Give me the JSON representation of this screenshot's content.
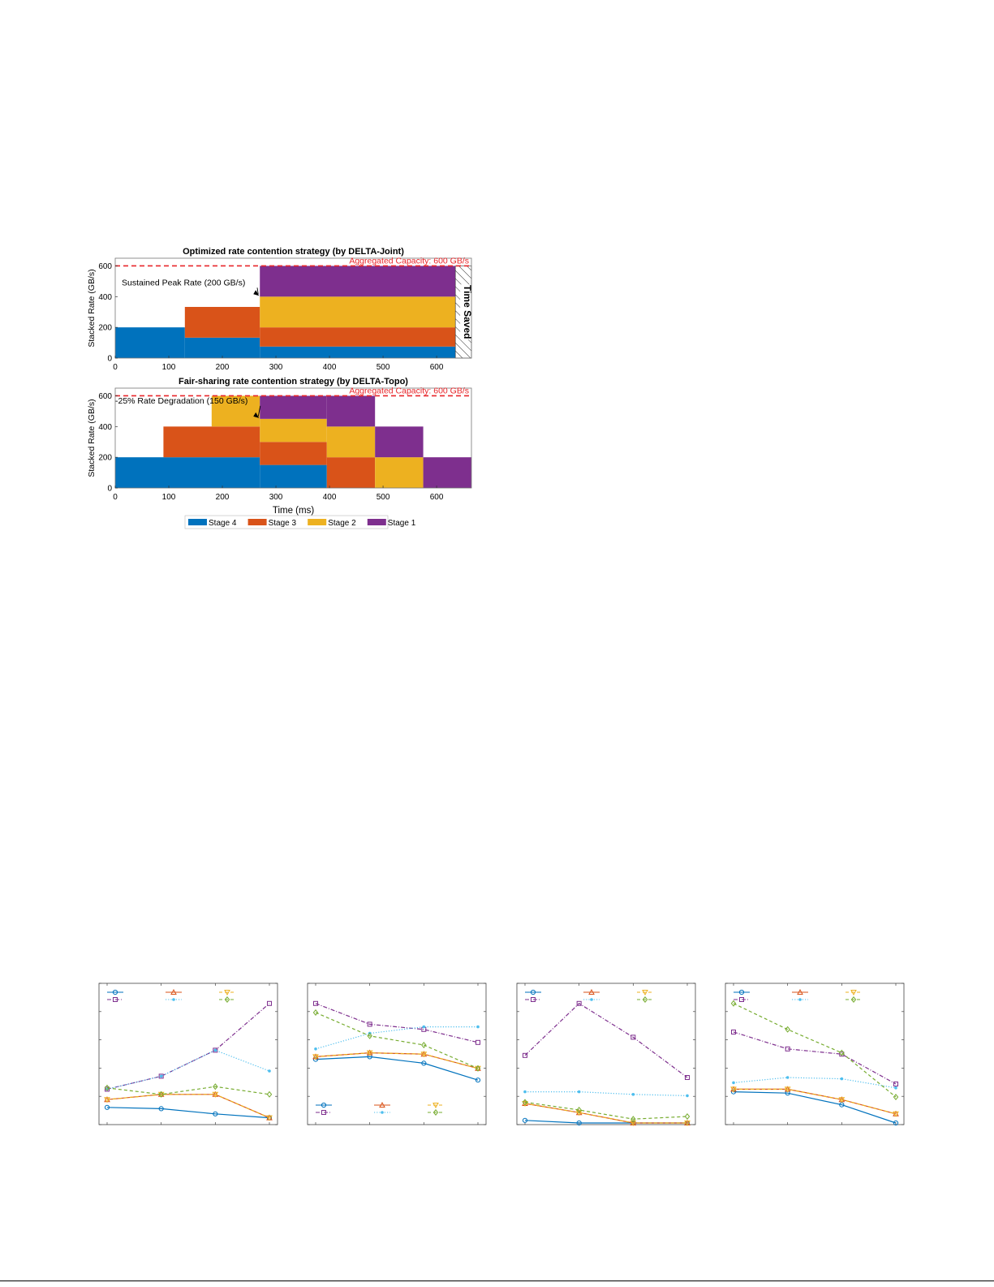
{
  "colors": {
    "stage4": "#0072BD",
    "stage3": "#D95319",
    "stage2": "#EDB120",
    "stage1": "#7E2F8E",
    "capacity": "#E8262A",
    "lc_blue": "#0072BD",
    "lc_orange": "#D95319",
    "lc_yellow": "#EDB120",
    "lc_purple": "#7E2F8E",
    "lc_cyan": "#4DBEEE",
    "lc_green": "#77AC30"
  },
  "chart_data": [
    {
      "type": "area",
      "subtype": "stacked-step",
      "title": "Optimized rate contention strategy (by DELTA-Joint)",
      "xlabel": "",
      "ylabel": "Stacked Rate (GB/s)",
      "xlim": [
        0,
        665
      ],
      "ylim": [
        0,
        650
      ],
      "xticks": [
        "0",
        "100",
        "200",
        "300",
        "400",
        "500",
        "600"
      ],
      "yticks": [
        "0",
        "200",
        "400",
        "600"
      ],
      "capacity_line": {
        "value": 600,
        "label": "Aggregated Capacity: 600 GB/s"
      },
      "annotations": [
        {
          "text": "Sustained Peak Rate (200 GB/s)",
          "arrow_to": [
            270,
            400
          ]
        },
        {
          "text": "Time Saved",
          "x_range": [
            635,
            665
          ]
        }
      ],
      "segments": [
        {
          "stage": "Stage 4",
          "x0": 0,
          "x1": 130,
          "y0": 0,
          "y1": 200
        },
        {
          "stage": "Stage 4",
          "x0": 130,
          "x1": 270,
          "y0": 0,
          "y1": 133
        },
        {
          "stage": "Stage 4",
          "x0": 270,
          "x1": 635,
          "y0": 0,
          "y1": 75
        },
        {
          "stage": "Stage 3",
          "x0": 130,
          "x1": 270,
          "y0": 133,
          "y1": 333
        },
        {
          "stage": "Stage 3",
          "x0": 270,
          "x1": 635,
          "y0": 75,
          "y1": 200
        },
        {
          "stage": "Stage 2",
          "x0": 270,
          "x1": 635,
          "y0": 200,
          "y1": 400
        },
        {
          "stage": "Stage 1",
          "x0": 270,
          "x1": 635,
          "y0": 400,
          "y1": 600
        }
      ]
    },
    {
      "type": "area",
      "subtype": "stacked-step",
      "title": "Fair-sharing rate contention strategy (by DELTA-Topo)",
      "xlabel": "Time (ms)",
      "ylabel": "Stacked Rate (GB/s)",
      "xlim": [
        0,
        665
      ],
      "ylim": [
        0,
        650
      ],
      "xticks": [
        "0",
        "100",
        "200",
        "300",
        "400",
        "500",
        "600"
      ],
      "yticks": [
        "0",
        "200",
        "400",
        "600"
      ],
      "capacity_line": {
        "value": 600,
        "label": "Aggregated Capacity: 600 GB/s"
      },
      "annotations": [
        {
          "text": "-25% Rate Degradation (150 GB/s)",
          "arrow_to": [
            270,
            450
          ]
        }
      ],
      "segments": [
        {
          "stage": "Stage 4",
          "x0": 0,
          "x1": 270,
          "y0": 0,
          "y1": 200
        },
        {
          "stage": "Stage 4",
          "x0": 270,
          "x1": 395,
          "y0": 0,
          "y1": 150
        },
        {
          "stage": "Stage 3",
          "x0": 90,
          "x1": 270,
          "y0": 200,
          "y1": 400
        },
        {
          "stage": "Stage 3",
          "x0": 270,
          "x1": 395,
          "y0": 150,
          "y1": 300
        },
        {
          "stage": "Stage 3",
          "x0": 395,
          "x1": 485,
          "y0": 0,
          "y1": 200
        },
        {
          "stage": "Stage 2",
          "x0": 180,
          "x1": 270,
          "y0": 400,
          "y1": 600
        },
        {
          "stage": "Stage 2",
          "x0": 270,
          "x1": 395,
          "y0": 300,
          "y1": 450
        },
        {
          "stage": "Stage 2",
          "x0": 395,
          "x1": 485,
          "y0": 200,
          "y1": 400
        },
        {
          "stage": "Stage 2",
          "x0": 485,
          "x1": 575,
          "y0": 0,
          "y1": 200
        },
        {
          "stage": "Stage 1",
          "x0": 270,
          "x1": 395,
          "y0": 450,
          "y1": 600
        },
        {
          "stage": "Stage 1",
          "x0": 395,
          "x1": 485,
          "y0": 400,
          "y1": 600
        },
        {
          "stage": "Stage 1",
          "x0": 485,
          "x1": 575,
          "y0": 200,
          "y1": 400
        },
        {
          "stage": "Stage 1",
          "x0": 575,
          "x1": 665,
          "y0": 0,
          "y1": 200
        }
      ]
    },
    {
      "type": "line",
      "x": [
        1,
        2,
        3,
        4
      ],
      "ylim": [
        0,
        1
      ],
      "series": [
        {
          "color": "lc_blue",
          "marker": "circle",
          "dash": "solid",
          "values": [
            0.12,
            0.11,
            0.07,
            0.04
          ]
        },
        {
          "color": "lc_orange",
          "marker": "triangle-up",
          "dash": "solid",
          "values": [
            0.18,
            0.22,
            0.22,
            0.04
          ]
        },
        {
          "color": "lc_yellow",
          "marker": "triangle-down",
          "dash": "dashed",
          "values": [
            0.18,
            0.22,
            0.22,
            0.04
          ]
        },
        {
          "color": "lc_purple",
          "marker": "square",
          "dash": "dashdot",
          "values": [
            0.26,
            0.36,
            0.56,
            0.92
          ]
        },
        {
          "color": "lc_cyan",
          "marker": "dot",
          "dash": "dotted",
          "values": [
            0.26,
            0.36,
            0.56,
            0.4
          ]
        },
        {
          "color": "lc_green",
          "marker": "diamond",
          "dash": "dashed",
          "values": [
            0.27,
            0.22,
            0.28,
            0.22
          ]
        }
      ],
      "legend": "top"
    },
    {
      "type": "line",
      "x": [
        1,
        2,
        3,
        4
      ],
      "ylim": [
        0,
        1
      ],
      "series": [
        {
          "color": "lc_blue",
          "marker": "circle",
          "dash": "solid",
          "values": [
            0.49,
            0.51,
            0.46,
            0.33
          ]
        },
        {
          "color": "lc_orange",
          "marker": "triangle-up",
          "dash": "solid",
          "values": [
            0.51,
            0.54,
            0.53,
            0.42
          ]
        },
        {
          "color": "lc_yellow",
          "marker": "triangle-down",
          "dash": "dashed",
          "values": [
            0.51,
            0.54,
            0.53,
            0.42
          ]
        },
        {
          "color": "lc_purple",
          "marker": "square",
          "dash": "dashdot",
          "values": [
            0.92,
            0.76,
            0.72,
            0.62
          ]
        },
        {
          "color": "lc_cyan",
          "marker": "dot",
          "dash": "dotted",
          "values": [
            0.57,
            0.69,
            0.74,
            0.74
          ]
        },
        {
          "color": "lc_green",
          "marker": "diamond",
          "dash": "dashed",
          "values": [
            0.85,
            0.67,
            0.6,
            0.42
          ]
        }
      ],
      "legend": "bottom"
    },
    {
      "type": "line",
      "x": [
        1,
        2,
        3,
        4
      ],
      "ylim": [
        0,
        1
      ],
      "series": [
        {
          "color": "lc_blue",
          "marker": "circle",
          "dash": "solid",
          "values": [
            0.02,
            0.0,
            0.0,
            0.0
          ]
        },
        {
          "color": "lc_orange",
          "marker": "triangle-up",
          "dash": "solid",
          "values": [
            0.15,
            0.08,
            0.0,
            0.0
          ]
        },
        {
          "color": "lc_yellow",
          "marker": "triangle-down",
          "dash": "dashed",
          "values": [
            0.15,
            0.08,
            0.0,
            0.0
          ]
        },
        {
          "color": "lc_purple",
          "marker": "square",
          "dash": "dashdot",
          "values": [
            0.52,
            0.92,
            0.66,
            0.35
          ]
        },
        {
          "color": "lc_cyan",
          "marker": "dot",
          "dash": "dotted",
          "values": [
            0.24,
            0.24,
            0.22,
            0.21
          ]
        },
        {
          "color": "lc_green",
          "marker": "diamond",
          "dash": "dashed",
          "values": [
            0.16,
            0.1,
            0.03,
            0.05
          ]
        }
      ],
      "legend": "top"
    },
    {
      "type": "line",
      "x": [
        1,
        2,
        3,
        4
      ],
      "ylim": [
        0,
        1
      ],
      "series": [
        {
          "color": "lc_blue",
          "marker": "circle",
          "dash": "solid",
          "values": [
            0.24,
            0.23,
            0.14,
            0.0
          ]
        },
        {
          "color": "lc_orange",
          "marker": "triangle-up",
          "dash": "solid",
          "values": [
            0.26,
            0.26,
            0.18,
            0.07
          ]
        },
        {
          "color": "lc_yellow",
          "marker": "triangle-down",
          "dash": "dashed",
          "values": [
            0.26,
            0.26,
            0.18,
            0.07
          ]
        },
        {
          "color": "lc_purple",
          "marker": "square",
          "dash": "dashdot",
          "values": [
            0.7,
            0.57,
            0.53,
            0.3
          ]
        },
        {
          "color": "lc_cyan",
          "marker": "dot",
          "dash": "dotted",
          "values": [
            0.31,
            0.35,
            0.34,
            0.27
          ]
        },
        {
          "color": "lc_green",
          "marker": "diamond",
          "dash": "dashed",
          "values": [
            0.92,
            0.72,
            0.54,
            0.2
          ]
        }
      ],
      "legend": "top"
    }
  ],
  "legend_stacked": [
    {
      "label": "Stage 4",
      "color": "stage4"
    },
    {
      "label": "Stage 3",
      "color": "stage3"
    },
    {
      "label": "Stage 2",
      "color": "stage2"
    },
    {
      "label": "Stage 1",
      "color": "stage1"
    }
  ]
}
